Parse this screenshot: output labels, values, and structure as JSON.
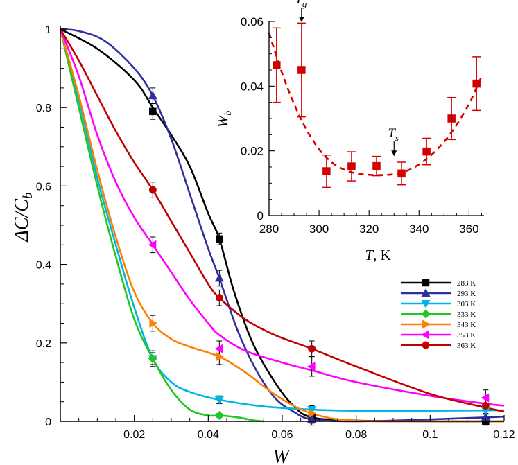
{
  "chart_data": [
    {
      "type": "line",
      "xlabel": "W",
      "ylabel": "ΔC/C_b",
      "ylabel_main": "ΔC/C",
      "ylabel_sub": "b",
      "xlim": [
        0,
        0.12
      ],
      "ylim": [
        0,
        1.05
      ],
      "xticks": [
        0.02,
        0.04,
        0.06,
        0.08,
        0.1,
        0.12
      ],
      "xtick_labels": [
        "0.02",
        "0.04",
        "0.06",
        "0.08",
        "0.1",
        "0.12"
      ],
      "yticks": [
        0,
        0.2,
        0.4,
        0.6,
        0.8,
        1
      ],
      "ytick_labels": [
        "0",
        "0.2",
        "0.4",
        "0.6",
        "0.8",
        "1"
      ],
      "legend_position": "lower-right",
      "series": [
        {
          "name": "283 K",
          "color": "#000000",
          "marker": "square",
          "points": [
            [
              0.025,
              0.79,
              0.02
            ],
            [
              0.043,
              0.465,
              0.015
            ],
            [
              0.068,
              0.01,
              0.02
            ],
            [
              0.115,
              0.0,
              0.01
            ]
          ],
          "curve": [
            [
              0,
              1.0
            ],
            [
              0.01,
              0.95
            ],
            [
              0.02,
              0.87
            ],
            [
              0.025,
              0.8
            ],
            [
              0.03,
              0.73
            ],
            [
              0.035,
              0.65
            ],
            [
              0.04,
              0.53
            ],
            [
              0.043,
              0.465
            ],
            [
              0.047,
              0.33
            ],
            [
              0.052,
              0.2
            ],
            [
              0.058,
              0.1
            ],
            [
              0.063,
              0.04
            ],
            [
              0.068,
              0.01
            ],
            [
              0.08,
              0.002
            ],
            [
              0.1,
              0.0
            ],
            [
              0.12,
              0.0
            ]
          ]
        },
        {
          "name": "293 K",
          "color": "#2e2e9e",
          "marker": "triangle-up",
          "points": [
            [
              0.025,
              0.83,
              0.02
            ],
            [
              0.043,
              0.365,
              0.02
            ],
            [
              0.068,
              0.005,
              0.01
            ],
            [
              0.115,
              0.01,
              0.01
            ]
          ],
          "curve": [
            [
              0,
              1.0
            ],
            [
              0.005,
              0.995
            ],
            [
              0.012,
              0.97
            ],
            [
              0.02,
              0.9
            ],
            [
              0.025,
              0.83
            ],
            [
              0.03,
              0.72
            ],
            [
              0.035,
              0.58
            ],
            [
              0.04,
              0.44
            ],
            [
              0.043,
              0.365
            ],
            [
              0.048,
              0.23
            ],
            [
              0.053,
              0.13
            ],
            [
              0.058,
              0.06
            ],
            [
              0.063,
              0.025
            ],
            [
              0.068,
              0.005
            ],
            [
              0.08,
              0.0
            ],
            [
              0.1,
              0.005
            ],
            [
              0.115,
              0.01
            ],
            [
              0.12,
              0.012
            ]
          ]
        },
        {
          "name": "303 K",
          "color": "#00b4e6",
          "marker": "triangle-down",
          "points": [
            [
              0.025,
              0.16,
              0.015
            ],
            [
              0.043,
              0.055,
              0.01
            ],
            [
              0.068,
              0.03,
              0.01
            ],
            [
              0.115,
              0.028,
              0.01
            ]
          ],
          "curve": [
            [
              0,
              1.0
            ],
            [
              0.005,
              0.82
            ],
            [
              0.01,
              0.62
            ],
            [
              0.015,
              0.45
            ],
            [
              0.02,
              0.29
            ],
            [
              0.025,
              0.16
            ],
            [
              0.03,
              0.1
            ],
            [
              0.035,
              0.075
            ],
            [
              0.043,
              0.055
            ],
            [
              0.055,
              0.038
            ],
            [
              0.068,
              0.03
            ],
            [
              0.08,
              0.027
            ],
            [
              0.1,
              0.027
            ],
            [
              0.115,
              0.028
            ],
            [
              0.12,
              0.028
            ]
          ]
        },
        {
          "name": "333 K",
          "color": "#1ec81e",
          "marker": "diamond",
          "points": [
            [
              0.025,
              0.16,
              0.02
            ],
            [
              0.043,
              0.015,
              0.005
            ]
          ],
          "curve": [
            [
              0,
              1.0
            ],
            [
              0.005,
              0.8
            ],
            [
              0.01,
              0.6
            ],
            [
              0.015,
              0.42
            ],
            [
              0.02,
              0.26
            ],
            [
              0.025,
              0.16
            ],
            [
              0.03,
              0.08
            ],
            [
              0.035,
              0.03
            ],
            [
              0.04,
              0.015
            ],
            [
              0.043,
              0.015
            ],
            [
              0.048,
              0.01
            ],
            [
              0.052,
              0.003
            ],
            [
              0.055,
              0.0
            ]
          ]
        },
        {
          "name": "343 K",
          "color": "#ff8000",
          "marker": "triangle-right",
          "points": [
            [
              0.025,
              0.25,
              0.02
            ],
            [
              0.043,
              0.165,
              0.02
            ],
            [
              0.068,
              0.02,
              0.01
            ]
          ],
          "curve": [
            [
              0,
              1.0
            ],
            [
              0.005,
              0.83
            ],
            [
              0.01,
              0.64
            ],
            [
              0.015,
              0.47
            ],
            [
              0.02,
              0.33
            ],
            [
              0.025,
              0.25
            ],
            [
              0.03,
              0.21
            ],
            [
              0.035,
              0.19
            ],
            [
              0.043,
              0.165
            ],
            [
              0.05,
              0.125
            ],
            [
              0.057,
              0.075
            ],
            [
              0.063,
              0.04
            ],
            [
              0.068,
              0.02
            ],
            [
              0.075,
              0.005
            ],
            [
              0.085,
              0.0
            ],
            [
              0.1,
              0.0
            ],
            [
              0.12,
              0.0
            ]
          ]
        },
        {
          "name": "353 K",
          "color": "#ff00ff",
          "marker": "triangle-left",
          "points": [
            [
              0.025,
              0.45,
              0.02
            ],
            [
              0.043,
              0.185,
              0.02
            ],
            [
              0.068,
              0.14,
              0.025
            ],
            [
              0.115,
              0.06,
              0.02
            ]
          ],
          "curve": [
            [
              0,
              1.0
            ],
            [
              0.005,
              0.88
            ],
            [
              0.01,
              0.73
            ],
            [
              0.015,
              0.61
            ],
            [
              0.02,
              0.52
            ],
            [
              0.025,
              0.45
            ],
            [
              0.03,
              0.38
            ],
            [
              0.035,
              0.31
            ],
            [
              0.04,
              0.25
            ],
            [
              0.043,
              0.22
            ],
            [
              0.05,
              0.18
            ],
            [
              0.06,
              0.15
            ],
            [
              0.068,
              0.13
            ],
            [
              0.08,
              0.1
            ],
            [
              0.1,
              0.065
            ],
            [
              0.115,
              0.045
            ],
            [
              0.12,
              0.04
            ]
          ]
        },
        {
          "name": "363 K",
          "color": "#c00000",
          "marker": "circle",
          "points": [
            [
              0.025,
              0.59,
              0.02
            ],
            [
              0.043,
              0.315,
              0.02
            ],
            [
              0.068,
              0.185,
              0.02
            ],
            [
              0.115,
              0.04,
              0.02
            ]
          ],
          "curve": [
            [
              0,
              1.0
            ],
            [
              0.005,
              0.92
            ],
            [
              0.01,
              0.83
            ],
            [
              0.015,
              0.74
            ],
            [
              0.02,
              0.66
            ],
            [
              0.025,
              0.59
            ],
            [
              0.03,
              0.51
            ],
            [
              0.035,
              0.43
            ],
            [
              0.04,
              0.35
            ],
            [
              0.043,
              0.315
            ],
            [
              0.05,
              0.26
            ],
            [
              0.058,
              0.22
            ],
            [
              0.068,
              0.185
            ],
            [
              0.08,
              0.14
            ],
            [
              0.1,
              0.07
            ],
            [
              0.115,
              0.035
            ],
            [
              0.12,
              0.025
            ]
          ]
        }
      ]
    },
    {
      "type": "scatter",
      "xlabel": "T, K",
      "xlabel_main": "T",
      "xlabel_unit": ", K",
      "ylabel": "W_b",
      "ylabel_main": "W",
      "ylabel_sub": "b",
      "xlim": [
        280,
        366
      ],
      "ylim": [
        0,
        0.06
      ],
      "xticks": [
        280,
        300,
        320,
        340,
        360
      ],
      "xtick_labels": [
        "280",
        "300",
        "320",
        "340",
        "360"
      ],
      "yticks": [
        0,
        0.02,
        0.04,
        0.06
      ],
      "ytick_labels": [
        "0",
        "0.02",
        "0.04",
        "0.06"
      ],
      "color": "#d40000",
      "marker": "square",
      "points": [
        {
          "x": 283,
          "y": 0.0465,
          "lo": 0.035,
          "hi": 0.058
        },
        {
          "x": 293,
          "y": 0.045,
          "lo": 0.0305,
          "hi": 0.0595
        },
        {
          "x": 303,
          "y": 0.0137,
          "lo": 0.0087,
          "hi": 0.0187
        },
        {
          "x": 313,
          "y": 0.0152,
          "lo": 0.0107,
          "hi": 0.0197
        },
        {
          "x": 323,
          "y": 0.0153,
          "lo": 0.0123,
          "hi": 0.0183
        },
        {
          "x": 333,
          "y": 0.013,
          "lo": 0.0095,
          "hi": 0.0165
        },
        {
          "x": 343,
          "y": 0.0198,
          "lo": 0.0157,
          "hi": 0.0239
        },
        {
          "x": 353,
          "y": 0.03,
          "lo": 0.0235,
          "hi": 0.0365
        },
        {
          "x": 363,
          "y": 0.0408,
          "lo": 0.0325,
          "hi": 0.0491
        }
      ],
      "fit_curve": [
        [
          280,
          0.0565
        ],
        [
          285,
          0.0445
        ],
        [
          290,
          0.0345
        ],
        [
          295,
          0.0265
        ],
        [
          300,
          0.0205
        ],
        [
          305,
          0.0165
        ],
        [
          310,
          0.0142
        ],
        [
          315,
          0.013
        ],
        [
          320,
          0.0126
        ],
        [
          325,
          0.0125
        ],
        [
          330,
          0.0128
        ],
        [
          335,
          0.0138
        ],
        [
          340,
          0.0158
        ],
        [
          345,
          0.0188
        ],
        [
          350,
          0.0228
        ],
        [
          355,
          0.028
        ],
        [
          360,
          0.0345
        ],
        [
          363,
          0.0395
        ],
        [
          365,
          0.043
        ]
      ],
      "annotations": [
        {
          "main": "T",
          "sub": "g",
          "x": 293,
          "y": 0.06
        },
        {
          "main": "T",
          "sub": "s",
          "x": 330,
          "y": 0.0186
        }
      ]
    }
  ]
}
